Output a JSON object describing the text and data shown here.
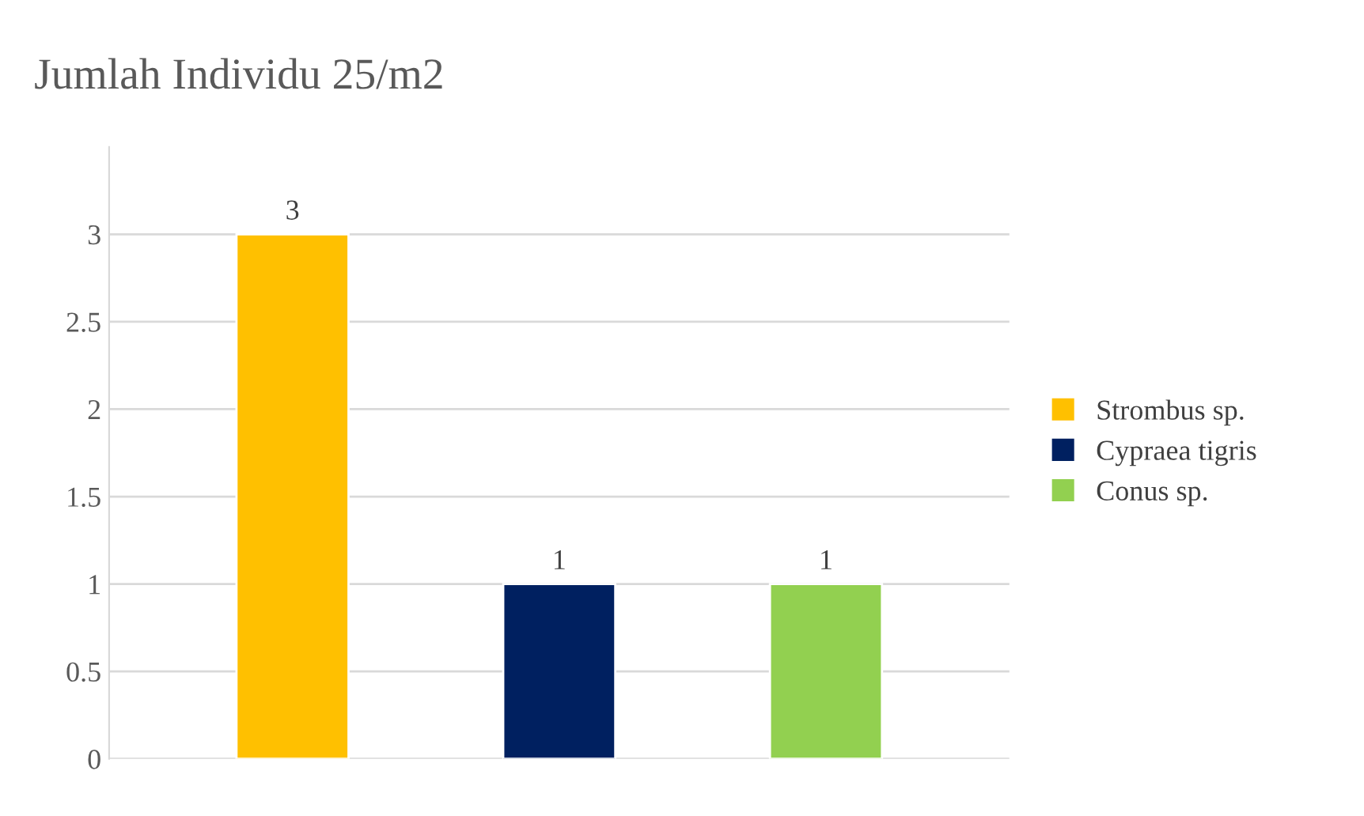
{
  "chart_data": {
    "type": "bar",
    "title": "Jumlah Individu 25/m2",
    "categories": [
      null
    ],
    "series": [
      {
        "name": "Strombus sp.",
        "color": "#ffc000",
        "values": [
          3
        ]
      },
      {
        "name": "Cypraea tigris",
        "color": "#002060",
        "values": [
          1
        ]
      },
      {
        "name": "Conus sp.",
        "color": "#92d050",
        "values": [
          1
        ]
      }
    ],
    "ylim": [
      0,
      3.5
    ],
    "yticks": [
      0,
      0.5,
      1,
      1.5,
      2,
      2.5,
      3
    ],
    "grid": "y",
    "legend": "right",
    "data_labels": true
  }
}
